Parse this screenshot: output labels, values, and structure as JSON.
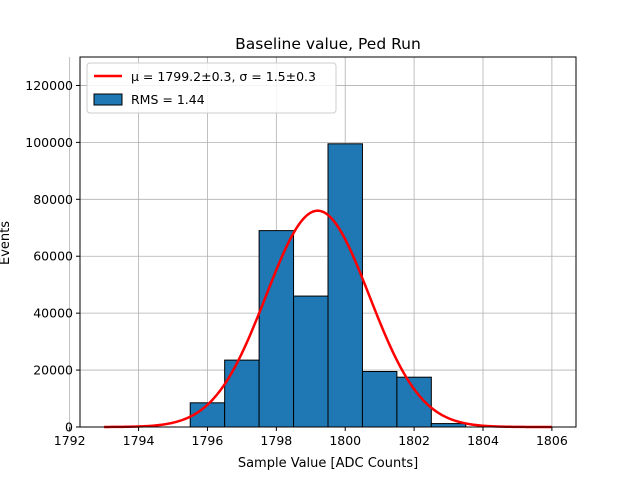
{
  "chart_data": {
    "type": "histogram",
    "title": "Baseline value, Ped Run",
    "xlabel": "Sample Value [ADC Counts]",
    "ylabel": "Events",
    "xlim": [
      1792.3,
      1806.7
    ],
    "ylim": [
      0,
      130000
    ],
    "xticks": [
      1792,
      1794,
      1796,
      1798,
      1800,
      1802,
      1804,
      1806
    ],
    "yticks": [
      0,
      20000,
      40000,
      60000,
      80000,
      100000,
      120000
    ],
    "grid": true,
    "legend_position": "top-left",
    "bins": [
      {
        "start": 1795.5,
        "end": 1796.5,
        "value": 8500
      },
      {
        "start": 1796.5,
        "end": 1797.5,
        "value": 23500
      },
      {
        "start": 1797.5,
        "end": 1798.5,
        "value": 69000
      },
      {
        "start": 1798.5,
        "end": 1799.5,
        "value": 46000
      },
      {
        "start": 1799.5,
        "end": 1800.5,
        "value": 99500
      },
      {
        "start": 1800.5,
        "end": 1801.5,
        "value": 19500
      },
      {
        "start": 1801.5,
        "end": 1802.5,
        "value": 17500
      },
      {
        "start": 1802.5,
        "end": 1803.5,
        "value": 1200
      }
    ],
    "fit": {
      "type": "gaussian",
      "mu": 1799.2,
      "sigma": 1.5,
      "amplitude": 76000,
      "x_range": [
        1793,
        1806
      ],
      "color": "#ff0000"
    },
    "bar_color": "#1f77b4",
    "legend": [
      {
        "label": "μ = 1799.2±0.3, σ = 1.5±0.3",
        "kind": "line",
        "color": "#ff0000"
      },
      {
        "label": "RMS = 1.44",
        "kind": "patch",
        "color": "#1f77b4"
      }
    ]
  }
}
